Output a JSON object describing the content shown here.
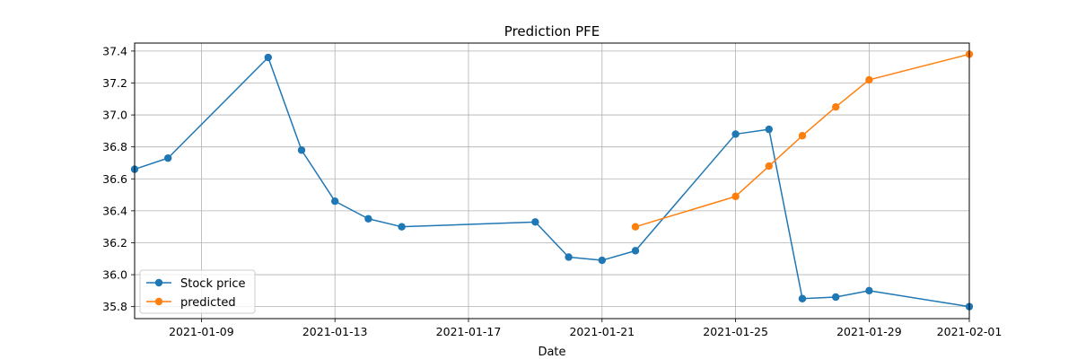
{
  "chart_data": {
    "type": "line",
    "title": "Prediction PFE",
    "xlabel": "Date",
    "ylabel": "",
    "xlim": [
      "2021-01-07",
      "2021-02-01"
    ],
    "ylim": [
      35.725,
      37.45
    ],
    "grid": true,
    "legend_position": "lower-left",
    "x_ticks": [
      "2021-01-09",
      "2021-01-13",
      "2021-01-17",
      "2021-01-21",
      "2021-01-25",
      "2021-01-29",
      "2021-02-01"
    ],
    "y_ticks": [
      "35.8",
      "36.0",
      "36.2",
      "36.4",
      "36.6",
      "36.8",
      "37.0",
      "37.2",
      "37.4"
    ],
    "series": [
      {
        "name": "Stock price",
        "color": "#1f77b4",
        "marker": "circle",
        "x": [
          "2021-01-07",
          "2021-01-08",
          "2021-01-11",
          "2021-01-12",
          "2021-01-13",
          "2021-01-14",
          "2021-01-15",
          "2021-01-19",
          "2021-01-20",
          "2021-01-21",
          "2021-01-22",
          "2021-01-25",
          "2021-01-26",
          "2021-01-27",
          "2021-01-28",
          "2021-01-29",
          "2021-02-01"
        ],
        "y": [
          36.66,
          36.73,
          37.36,
          36.78,
          36.46,
          36.35,
          36.3,
          36.33,
          36.11,
          36.09,
          36.15,
          36.88,
          36.91,
          35.85,
          35.86,
          35.9,
          35.8
        ]
      },
      {
        "name": "predicted",
        "color": "#ff7f0e",
        "marker": "circle",
        "x": [
          "2021-01-22",
          "2021-01-25",
          "2021-01-26",
          "2021-01-27",
          "2021-01-28",
          "2021-01-29",
          "2021-02-01"
        ],
        "y": [
          36.3,
          36.49,
          36.68,
          36.87,
          37.05,
          37.22,
          37.38
        ]
      }
    ]
  }
}
